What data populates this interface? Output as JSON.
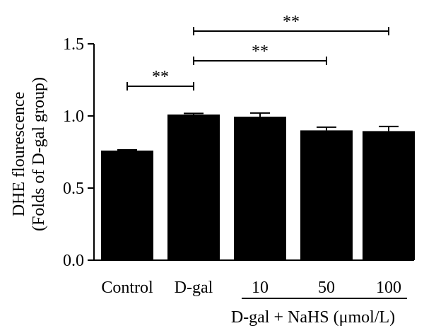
{
  "chart_data": {
    "type": "bar",
    "categories": [
      "Control",
      "D-gal",
      "10",
      "50",
      "100"
    ],
    "values": [
      0.76,
      1.01,
      0.995,
      0.9,
      0.895
    ],
    "errors": [
      0.005,
      0.008,
      0.025,
      0.022,
      0.032
    ],
    "ylabel_line1": "DHE flourescence",
    "ylabel_line2": "(Folds of D-gal group)",
    "ylim": [
      0.0,
      1.5
    ],
    "yticks": [
      "0.0",
      "0.5",
      "1.0",
      "1.5"
    ],
    "ytick_values": [
      0.0,
      0.5,
      1.0,
      1.5
    ],
    "group_label": "D-gal + NaHS (μmol/L)",
    "group_members": [
      "10",
      "50",
      "100"
    ],
    "significance": [
      {
        "from": "Control",
        "to": "D-gal",
        "label": "**"
      },
      {
        "from": "D-gal",
        "to": "50",
        "label": "**"
      },
      {
        "from": "D-gal",
        "to": "100",
        "label": "**"
      }
    ],
    "bar_color": "#000000",
    "grid": false
  }
}
